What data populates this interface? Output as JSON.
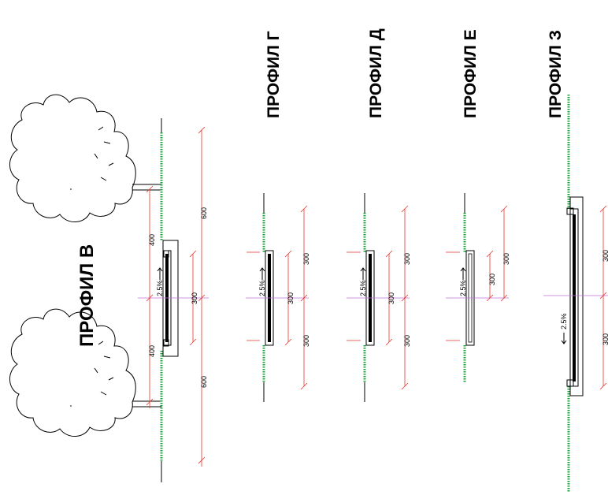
{
  "colors": {
    "ground": "#1aa33a",
    "dimension": "#e8352e",
    "axis": "#c06fd6",
    "line": "#000000"
  },
  "profiles": {
    "v": {
      "title": "ПРОФИЛ В",
      "slope": "2.5%",
      "dims_outer": [
        "600",
        "600"
      ],
      "dims_mid": [
        "400",
        "400"
      ],
      "dim_center": "300"
    },
    "g": {
      "title": "ПРОФИЛ Г",
      "slope": "2.5%",
      "dims_outer": [
        "300",
        "300"
      ],
      "dim_center": "300"
    },
    "d": {
      "title": "ПРОФИЛ Д",
      "slope": "2.5%",
      "dims_outer": [
        "300",
        "300"
      ],
      "dim_center": "300"
    },
    "e": {
      "title": "ПРОФИЛ Е",
      "slope": "2.5%",
      "dim_right": "300",
      "dim_center": "300"
    },
    "z": {
      "title": "ПРОФИЛ З",
      "slope": "2.5%",
      "dims_outer": [
        "300",
        "300"
      ]
    }
  }
}
